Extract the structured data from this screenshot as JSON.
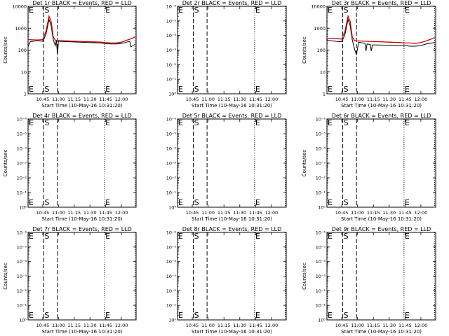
{
  "figure": {
    "grid": false,
    "vlines": [
      {
        "x": "10:46",
        "style": "dashed"
      },
      {
        "x": "10:59",
        "style": "dashed"
      },
      {
        "x": "11:44",
        "style": "dotted"
      },
      {
        "x": "12:13",
        "style": "dotted"
      }
    ],
    "markers": [
      {
        "label": "E",
        "x": "10:31"
      },
      {
        "label": "S",
        "x": "10:46"
      },
      {
        "label": "E",
        "x": "11:44"
      }
    ],
    "colors": {
      "events": "#000000",
      "lld": "#cc0000"
    }
  },
  "chart_data": [
    {
      "type": "line",
      "title": "Det 1r BLACK = Events, RED = LLD",
      "xlabel": "Start Time (10-May-16 10:31:20)",
      "ylabel": "Counts/sec",
      "xlim": [
        "10:31",
        "12:14"
      ],
      "xticks": [
        "10:45",
        "11:00",
        "11:15",
        "11:30",
        "11:45",
        "12:00"
      ],
      "yscale": "log",
      "ylim": [
        1,
        10000
      ],
      "yticks": [
        "1",
        "10",
        "100",
        "1000",
        "10000"
      ],
      "series": [
        {
          "name": "Events",
          "color": "#000000",
          "x": [
            "10:31",
            "10:33",
            "10:40",
            "10:45",
            "10:48",
            "10:51",
            "10:53",
            "10:55",
            "10:57",
            "10:58",
            "10:59",
            "11:00",
            "11:01",
            "11:10",
            "11:20",
            "11:30",
            "11:40",
            "11:44",
            "11:50",
            "11:55",
            "12:00",
            "12:05",
            "12:08",
            "12:09",
            "12:13"
          ],
          "y": [
            140,
            240,
            270,
            250,
            500,
            2500,
            1300,
            300,
            160,
            280,
            60,
            260,
            250,
            240,
            230,
            220,
            210,
            200,
            190,
            190,
            200,
            230,
            250,
            140,
            180
          ]
        },
        {
          "name": "LLD",
          "color": "#cc0000",
          "x": [
            "10:31",
            "10:40",
            "10:45",
            "10:48",
            "10:51",
            "10:53",
            "10:55",
            "10:57",
            "10:59",
            "11:01",
            "11:10",
            "11:20",
            "11:30",
            "11:40",
            "11:44",
            "11:50",
            "11:55",
            "12:00",
            "12:05",
            "12:10",
            "12:13"
          ],
          "y": [
            300,
            290,
            300,
            700,
            3500,
            2000,
            400,
            280,
            270,
            270,
            260,
            250,
            240,
            230,
            220,
            210,
            210,
            230,
            280,
            340,
            400
          ]
        }
      ]
    },
    {
      "type": "line",
      "title": "Det 2r BLACK = Events, RED = LLD",
      "xlabel": "Start Time (10-May-16 10:31:20)",
      "ylabel": "",
      "xlim": [
        "10:31",
        "12:14"
      ],
      "xticks": [
        "10:45",
        "11:00",
        "11:15",
        "11:30",
        "11:45",
        "12:00"
      ],
      "yscale": "log",
      "ylim": [
        1,
        1e-06
      ],
      "yticks": [
        "10⁰",
        "10⁻¹",
        "10⁻²",
        "10⁻³",
        "10⁻⁴",
        "10⁻⁵",
        "10⁻⁶"
      ],
      "series": []
    },
    {
      "type": "line",
      "title": "Det 3r BLACK = Events, RED = LLD",
      "xlabel": "Start Time (10-May-16 10:31:20)",
      "ylabel": "Counts/sec",
      "xlim": [
        "10:31",
        "12:14"
      ],
      "xticks": [
        "10:45",
        "11:00",
        "11:15",
        "11:30",
        "11:45",
        "12:00"
      ],
      "yscale": "log",
      "ylim": [
        1,
        10000
      ],
      "yticks": [
        "1",
        "10",
        "100",
        "1000",
        "10000"
      ],
      "series": [
        {
          "name": "Events",
          "color": "#000000",
          "x": [
            "10:31",
            "10:40",
            "10:45",
            "10:48",
            "10:51",
            "10:53",
            "10:55",
            "10:57",
            "10:59",
            "11:01",
            "11:05",
            "11:07",
            "11:08",
            "11:09",
            "11:12",
            "11:13",
            "11:14",
            "11:20",
            "11:30",
            "11:40",
            "11:44",
            "11:50",
            "11:55",
            "12:00",
            "12:05",
            "12:13"
          ],
          "y": [
            280,
            250,
            240,
            500,
            2500,
            1300,
            300,
            120,
            60,
            230,
            210,
            200,
            90,
            190,
            180,
            90,
            170,
            170,
            165,
            160,
            160,
            150,
            150,
            160,
            190,
            220
          ]
        },
        {
          "name": "LLD",
          "color": "#cc0000",
          "x": [
            "10:31",
            "10:40",
            "10:45",
            "10:48",
            "10:51",
            "10:53",
            "10:55",
            "10:57",
            "10:59",
            "11:01",
            "11:10",
            "11:20",
            "11:30",
            "11:40",
            "11:44",
            "11:50",
            "11:55",
            "12:00",
            "12:05",
            "12:10",
            "12:13"
          ],
          "y": [
            350,
            330,
            320,
            700,
            3500,
            2000,
            400,
            280,
            260,
            260,
            250,
            240,
            230,
            220,
            210,
            210,
            200,
            220,
            260,
            320,
            380
          ]
        }
      ]
    },
    {
      "type": "line",
      "title": "Det 4r BLACK = Events, RED = LLD",
      "xlabel": "Start Time (10-May-16 10:31:20)",
      "ylabel": "Counts/sec",
      "xlim": [
        "10:31",
        "12:14"
      ],
      "xticks": [
        "10:45",
        "11:00",
        "11:15",
        "11:30",
        "11:45",
        "12:00"
      ],
      "yscale": "log",
      "ylim": [
        1,
        1e-06
      ],
      "yticks": [
        "10⁰",
        "10⁻¹",
        "10⁻²",
        "10⁻³",
        "10⁻⁴",
        "10⁻⁵",
        "10⁻⁶"
      ],
      "series": []
    },
    {
      "type": "line",
      "title": "Det 5r BLACK = Events, RED = LLD",
      "xlabel": "Start Time (10-May-16 10:31:20)",
      "ylabel": "",
      "xlim": [
        "10:31",
        "12:14"
      ],
      "xticks": [
        "10:45",
        "11:00",
        "11:15",
        "11:30",
        "11:45",
        "12:00"
      ],
      "yscale": "log",
      "ylim": [
        1,
        1e-06
      ],
      "yticks": [
        "10⁰",
        "10⁻¹",
        "10⁻²",
        "10⁻³",
        "10⁻⁴",
        "10⁻⁵",
        "10⁻⁶"
      ],
      "series": []
    },
    {
      "type": "line",
      "title": "Det 6r BLACK = Events, RED = LLD",
      "xlabel": "Start Time (10-May-16 10:31:20)",
      "ylabel": "Counts/sec",
      "xlim": [
        "10:31",
        "12:14"
      ],
      "xticks": [
        "10:45",
        "11:00",
        "11:15",
        "11:30",
        "11:45",
        "12:00"
      ],
      "yscale": "log",
      "ylim": [
        1,
        1e-06
      ],
      "yticks": [
        "10⁰",
        "10⁻¹",
        "10⁻²",
        "10⁻³",
        "10⁻⁴",
        "10⁻⁵",
        "10⁻⁶"
      ],
      "series": []
    },
    {
      "type": "line",
      "title": "Det 7r BLACK = Events, RED = LLD",
      "xlabel": "Start Time (10-May-16 10:31:20)",
      "ylabel": "Counts/sec",
      "xlim": [
        "10:31",
        "12:14"
      ],
      "xticks": [
        "10:45",
        "11:00",
        "11:15",
        "11:30",
        "11:45",
        "12:00"
      ],
      "yscale": "log",
      "ylim": [
        1,
        1e-06
      ],
      "yticks": [
        "10⁰",
        "10⁻¹",
        "10⁻²",
        "10⁻³",
        "10⁻⁴",
        "10⁻⁵",
        "10⁻⁶"
      ],
      "series": []
    },
    {
      "type": "line",
      "title": "Det 8r BLACK = Events, RED = LLD",
      "xlabel": "Start Time (10-May-16 10:31:20)",
      "ylabel": "",
      "xlim": [
        "10:31",
        "12:14"
      ],
      "xticks": [
        "10:45",
        "11:00",
        "11:15",
        "11:30",
        "11:45",
        "12:00"
      ],
      "yscale": "log",
      "ylim": [
        1,
        1e-06
      ],
      "yticks": [
        "10⁰",
        "10⁻¹",
        "10⁻²",
        "10⁻³",
        "10⁻⁴",
        "10⁻⁵",
        "10⁻⁶"
      ],
      "series": []
    },
    {
      "type": "line",
      "title": "Det 9r BLACK = Events, RED = LLD",
      "xlabel": "Start Time (10-May-16 10:31:20)",
      "ylabel": "Counts/sec",
      "xlim": [
        "10:31",
        "12:14"
      ],
      "xticks": [
        "10:45",
        "11:00",
        "11:15",
        "11:30",
        "11:45",
        "12:00"
      ],
      "yscale": "log",
      "ylim": [
        1,
        1e-06
      ],
      "yticks": [
        "10⁰",
        "10⁻¹",
        "10⁻²",
        "10⁻³",
        "10⁻⁴",
        "10⁻⁵",
        "10⁻⁶"
      ],
      "series": []
    }
  ]
}
